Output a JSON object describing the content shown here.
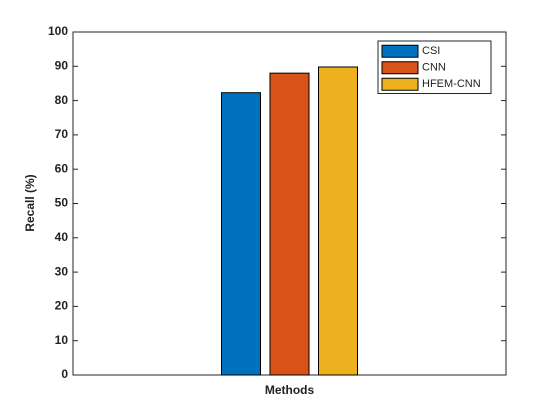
{
  "chart_data": {
    "type": "bar",
    "categories": [
      null
    ],
    "x_label": "Methods",
    "y_label": "Recall (%)",
    "series": [
      {
        "name": "CSI",
        "color": "#0072bd",
        "values": [
          82.3
        ]
      },
      {
        "name": "CNN",
        "color": "#d95319",
        "values": [
          88
        ]
      },
      {
        "name": "HFEM-CNN",
        "color": "#edb120",
        "values": [
          89.8
        ]
      }
    ],
    "ylim": [
      0,
      100
    ],
    "yticks": [
      0,
      10,
      20,
      30,
      40,
      50,
      60,
      70,
      80,
      90,
      100
    ],
    "legend": "top-right"
  }
}
